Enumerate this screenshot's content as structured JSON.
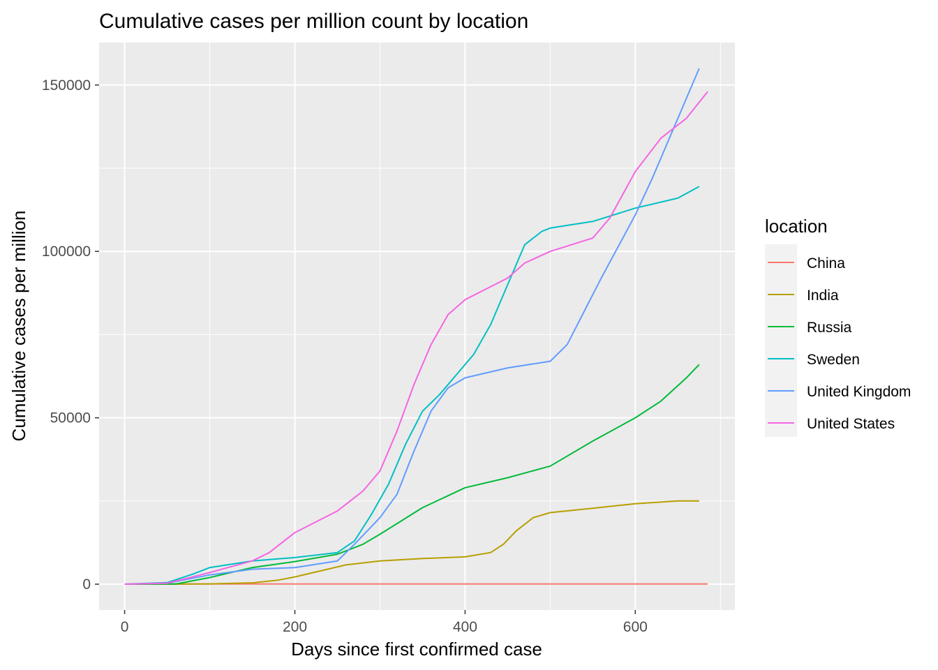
{
  "chart_data": {
    "type": "line",
    "title": "Cumulative cases per million count by location",
    "xlabel": "Days since first confirmed case",
    "ylabel": "Cumulative cases per million",
    "xlim": [
      -30,
      717
    ],
    "ylim": [
      -7750,
      162750
    ],
    "x_ticks": [
      0,
      200,
      400,
      600
    ],
    "x_tick_labels": [
      "0",
      "200",
      "400",
      "600"
    ],
    "y_ticks": [
      0,
      50000,
      100000,
      150000
    ],
    "y_tick_labels": [
      "0",
      "50000",
      "100000",
      "150000"
    ],
    "grid": true,
    "legend": {
      "title": "location",
      "position": "right"
    },
    "series": [
      {
        "name": "China",
        "color": "#F8766D",
        "x": [
          0,
          60,
          120,
          200,
          300,
          400,
          500,
          600,
          685
        ],
        "y": [
          0,
          60,
          60,
          65,
          65,
          68,
          70,
          72,
          75
        ]
      },
      {
        "name": "India",
        "color": "#B79F00",
        "x": [
          0,
          50,
          100,
          150,
          180,
          200,
          230,
          260,
          300,
          350,
          400,
          430,
          445,
          460,
          480,
          500,
          550,
          600,
          650,
          675
        ],
        "y": [
          0,
          0,
          100,
          400,
          1200,
          2200,
          4000,
          5800,
          7000,
          7700,
          8200,
          9500,
          12000,
          16000,
          20000,
          21500,
          22800,
          24200,
          25000,
          25000
        ]
      },
      {
        "name": "Russia",
        "color": "#00BA38",
        "x": [
          0,
          60,
          100,
          150,
          200,
          250,
          280,
          300,
          350,
          400,
          450,
          500,
          550,
          600,
          630,
          660,
          675
        ],
        "y": [
          0,
          50,
          2000,
          5000,
          6800,
          9000,
          12000,
          15000,
          23000,
          29000,
          32000,
          35500,
          43000,
          50000,
          55000,
          62000,
          66000
        ]
      },
      {
        "name": "Sweden",
        "color": "#00BFC4",
        "x": [
          0,
          50,
          80,
          100,
          150,
          200,
          250,
          270,
          290,
          310,
          330,
          350,
          370,
          390,
          410,
          430,
          450,
          470,
          490,
          500,
          550,
          600,
          650,
          675
        ],
        "y": [
          0,
          500,
          3000,
          5000,
          7000,
          8000,
          9500,
          13000,
          21000,
          30000,
          42000,
          52000,
          57000,
          63000,
          69000,
          78000,
          90000,
          102000,
          106000,
          107000,
          109000,
          113000,
          116000,
          119500
        ]
      },
      {
        "name": "United Kingdom",
        "color": "#619CFF",
        "x": [
          0,
          50,
          100,
          150,
          200,
          250,
          270,
          300,
          320,
          340,
          360,
          380,
          400,
          450,
          500,
          520,
          540,
          560,
          600,
          620,
          640,
          660,
          675
        ],
        "y": [
          0,
          300,
          2800,
          4500,
          5000,
          7000,
          12000,
          20000,
          27000,
          40000,
          52000,
          59000,
          62000,
          65000,
          67000,
          72000,
          82000,
          92000,
          111000,
          122000,
          134000,
          146000,
          155000
        ]
      },
      {
        "name": "United States",
        "color": "#F564E3",
        "x": [
          0,
          50,
          100,
          150,
          170,
          200,
          250,
          280,
          300,
          320,
          340,
          360,
          380,
          400,
          450,
          470,
          500,
          550,
          570,
          600,
          630,
          660,
          685
        ],
        "y": [
          0,
          300,
          3500,
          7000,
          9500,
          15500,
          22000,
          28000,
          34000,
          46000,
          60000,
          72000,
          81000,
          85500,
          92000,
          96500,
          100000,
          104000,
          110000,
          124000,
          134000,
          140000,
          148000
        ]
      }
    ]
  }
}
